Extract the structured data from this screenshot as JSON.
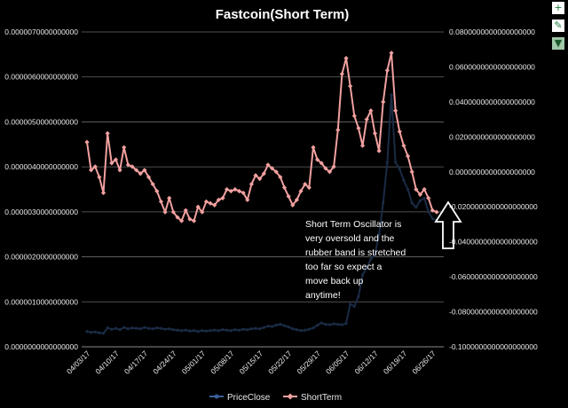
{
  "chart_data": {
    "type": "line",
    "title": "Fastcoin(Short Term)",
    "x_tick_labels": [
      "04/03/17",
      "04/10/17",
      "04/17/17",
      "04/24/17",
      "05/01/17",
      "05/08/17",
      "05/15/17",
      "05/22/17",
      "05/29/17",
      "06/05/17",
      "06/12/17",
      "06/19/17",
      "06/26/17"
    ],
    "y_left": {
      "min": 0,
      "max": 7e-06,
      "tick_labels": [
        "0.0000000000000000",
        "0.0000010000000000",
        "0.0000020000000000",
        "0.0000030000000000",
        "0.0000040000000000",
        "0.0000050000000000",
        "0.0000060000000000",
        "0.0000070000000000"
      ]
    },
    "y_right": {
      "min": -0.1,
      "max": 0.08,
      "tick_labels": [
        "-0.1000000000000000000",
        "-0.0800000000000000000",
        "-0.0600000000000000000",
        "-0.0400000000000000000",
        "-0.0200000000000000000",
        "0.0000000000000000000",
        "0.0200000000000000000",
        "0.0400000000000000000",
        "0.0600000000000000000",
        "0.0800000000000000000"
      ]
    },
    "grid": true,
    "legend_position": "bottom",
    "series": [
      {
        "name": "PriceClose",
        "axis": "left",
        "color": "#1a2b45",
        "values": [
          3.4e-07,
          3.2e-07,
          3.3e-07,
          3.1e-07,
          3e-07,
          4.2e-07,
          3.9e-07,
          4.1e-07,
          3.8e-07,
          4.3e-07,
          4e-07,
          4.2e-07,
          4.1e-07,
          4e-07,
          4.3e-07,
          4.1e-07,
          4e-07,
          4.2e-07,
          4.1e-07,
          3.9e-07,
          4e-07,
          3.8e-07,
          3.7e-07,
          3.6e-07,
          3.7e-07,
          3.5e-07,
          3.6e-07,
          3.4e-07,
          3.6e-07,
          3.5e-07,
          3.6e-07,
          3.7e-07,
          3.6e-07,
          3.8e-07,
          3.7e-07,
          3.6e-07,
          3.8e-07,
          3.7e-07,
          3.9e-07,
          3.8e-07,
          4e-07,
          4.1e-07,
          4e-07,
          4.3e-07,
          4.6e-07,
          4.5e-07,
          4.8e-07,
          5e-07,
          4.7e-07,
          4.4e-07,
          4e-07,
          3.8e-07,
          3.6e-07,
          3.7e-07,
          3.9e-07,
          4.2e-07,
          4.8e-07,
          5.3e-07,
          5e-07,
          4.9e-07,
          5.1e-07,
          5e-07,
          4.9e-07,
          5.2e-07,
          9.5e-07,
          9e-07,
          1.12e-06,
          1.6e-06,
          1.75e-06,
          1.95e-06,
          2.05e-06,
          2.5e-06,
          3.2e-06,
          4.1e-06,
          5.6e-06,
          4.1e-06,
          3.95e-06,
          3.7e-06,
          3.5e-06,
          3.2e-06,
          3.1e-06,
          3.25e-06,
          3.3e-06,
          3e-06,
          2.85e-06,
          2.8e-06
        ]
      },
      {
        "name": "ShortTerm",
        "axis": "right",
        "color": "#f2a0a0",
        "values": [
          0.017,
          0.001,
          0.003,
          -0.003,
          -0.012,
          0.022,
          0.005,
          0.007,
          0.001,
          0.014,
          0.004,
          0.003,
          0.001,
          -0.001,
          0.001,
          -0.003,
          -0.007,
          -0.011,
          -0.017,
          -0.023,
          -0.015,
          -0.023,
          -0.026,
          -0.028,
          -0.022,
          -0.027,
          -0.028,
          -0.02,
          -0.023,
          -0.017,
          -0.018,
          -0.019,
          -0.016,
          -0.015,
          -0.01,
          -0.011,
          -0.01,
          -0.011,
          -0.012,
          -0.016,
          -0.007,
          -0.002,
          -0.004,
          -0.001,
          0.004,
          0.002,
          0.0,
          -0.003,
          -0.009,
          -0.014,
          -0.019,
          -0.016,
          -0.011,
          -0.007,
          -0.009,
          0.014,
          0.007,
          0.005,
          0.002,
          0.0,
          0.003,
          0.024,
          0.056,
          0.065,
          0.049,
          0.032,
          0.025,
          0.015,
          0.03,
          0.035,
          0.022,
          0.012,
          0.04,
          0.058,
          0.068,
          0.035,
          0.023,
          0.015,
          0.009,
          0.0,
          -0.01,
          -0.013,
          -0.01,
          -0.015,
          -0.022,
          -0.023
        ]
      }
    ],
    "annotation": "Short Term Oscillator is very oversold and the rubber band is stretched too far so expect a move back up anytime!"
  },
  "toolbar": {
    "add_glyph": "+",
    "style_glyph": "✎",
    "filter_glyph": "▼"
  }
}
